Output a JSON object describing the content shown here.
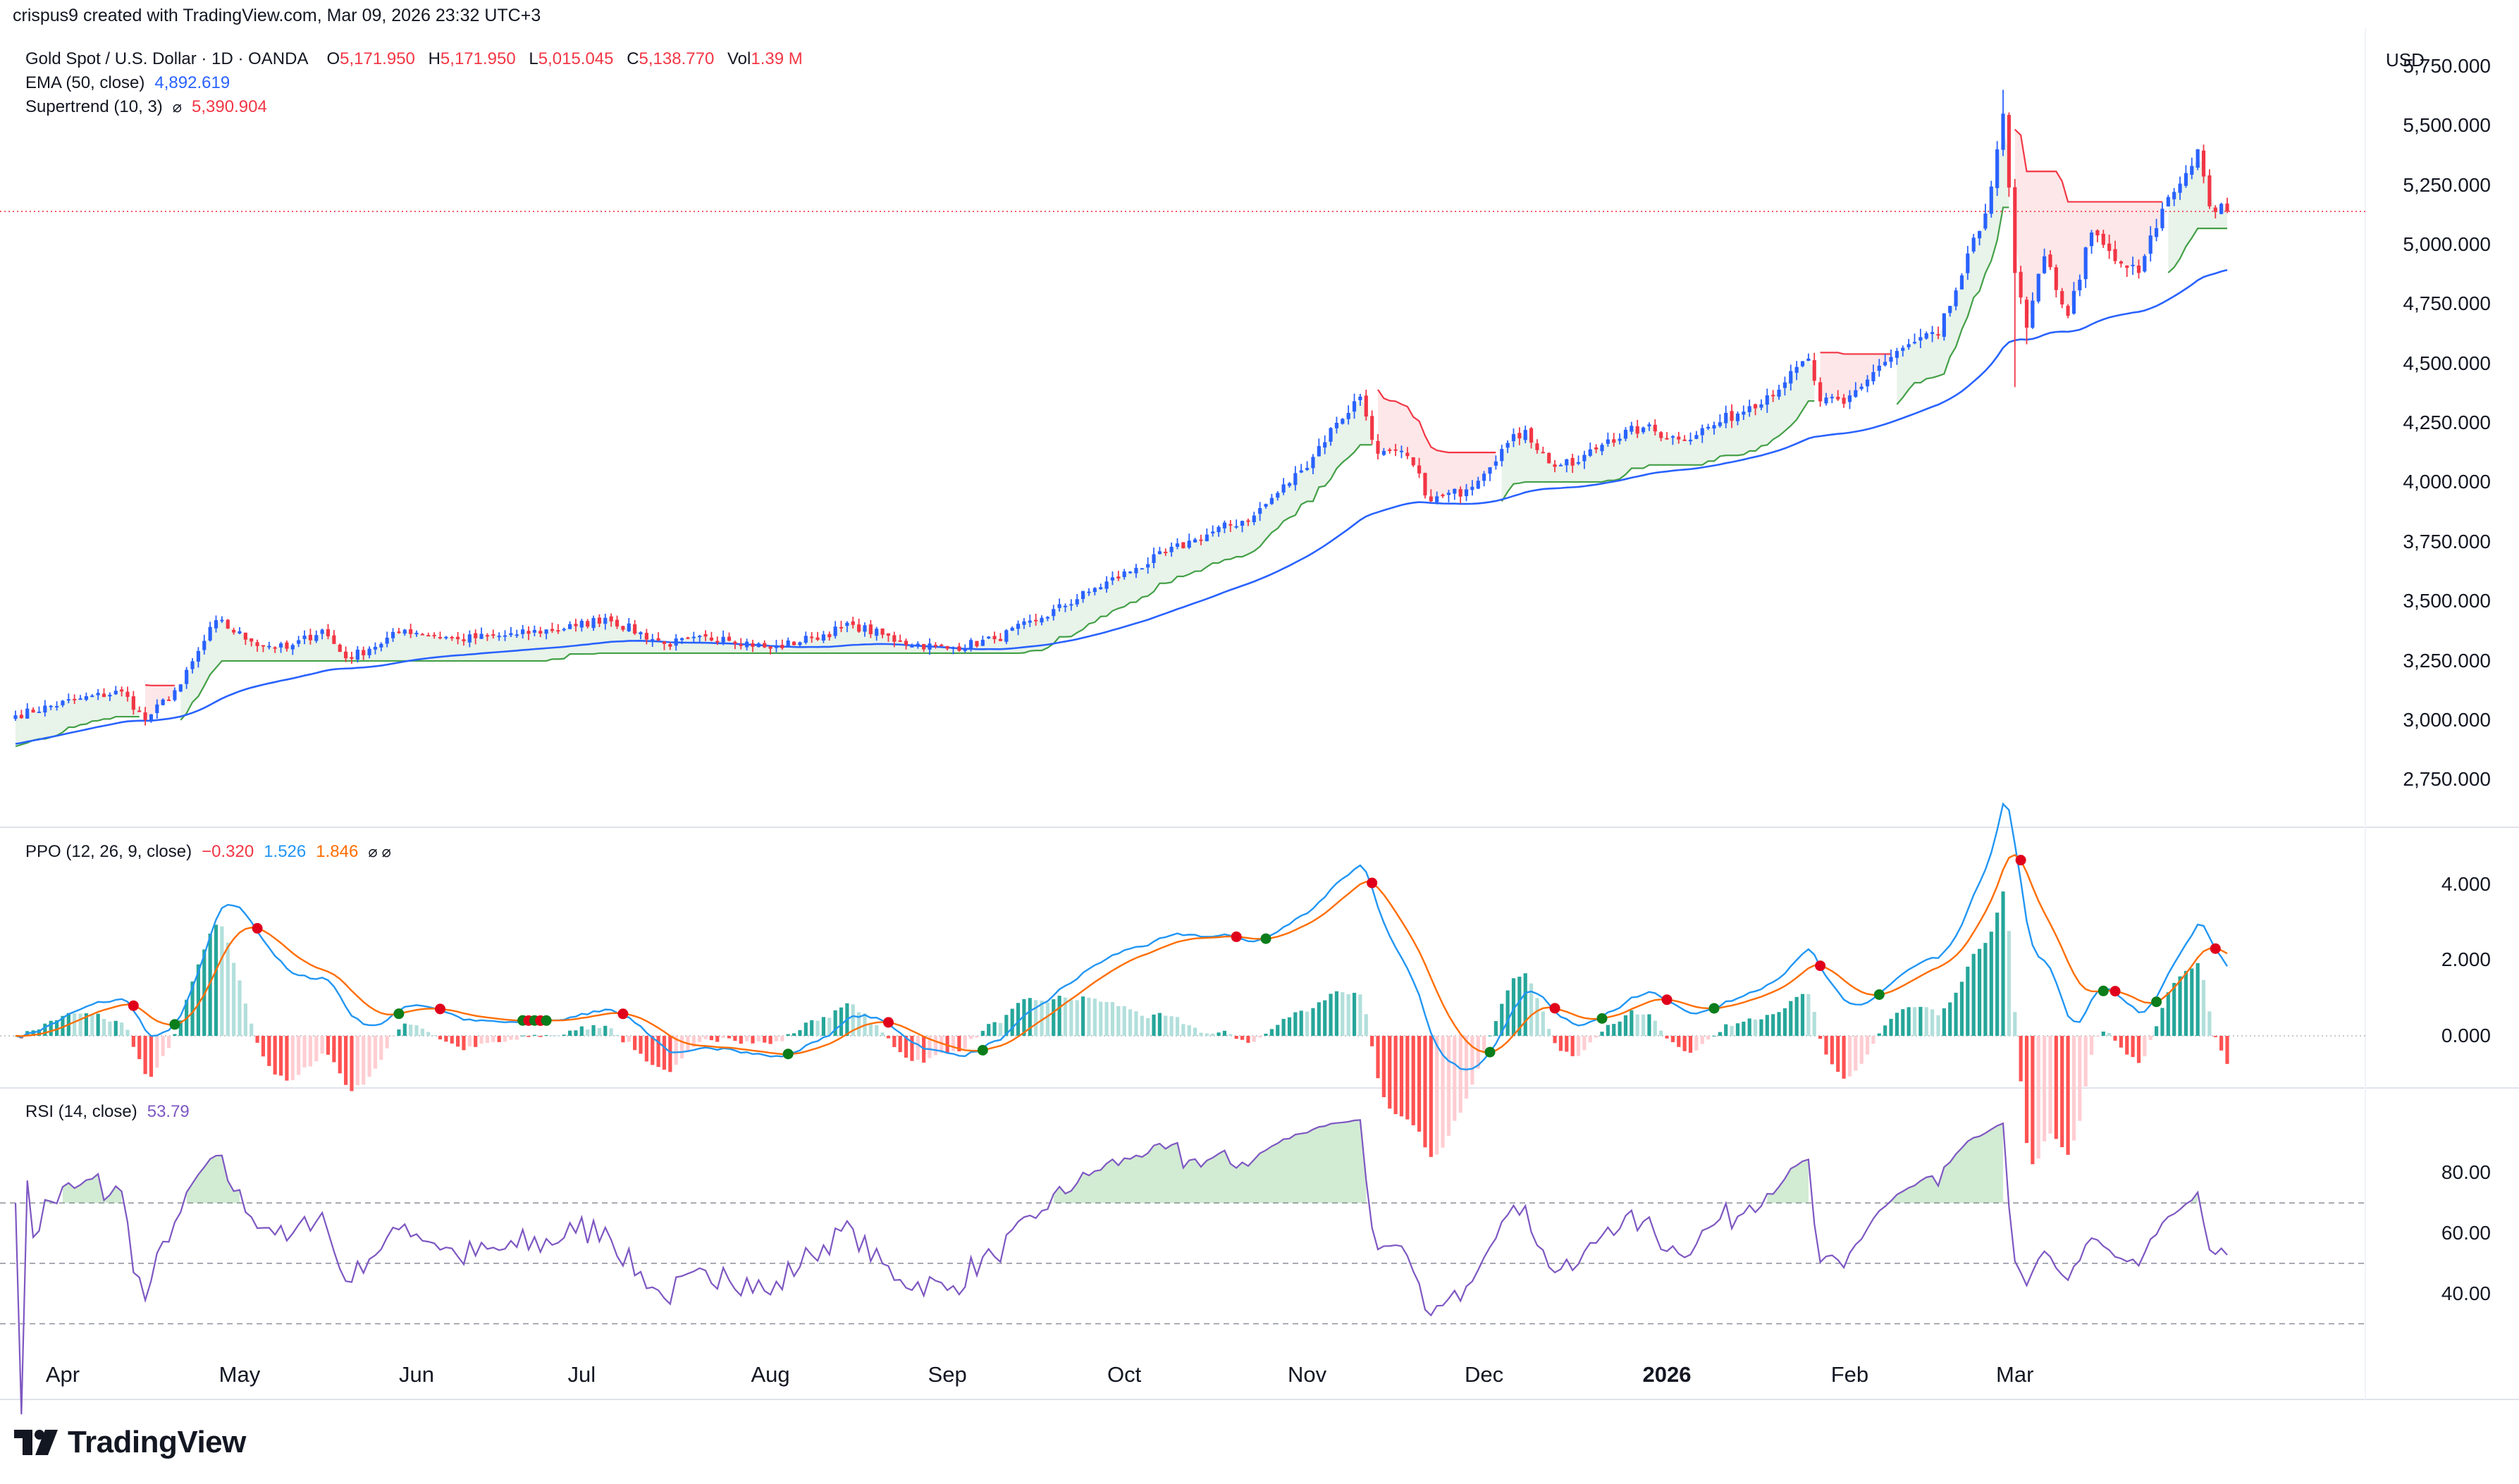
{
  "header": "crispus9 created with TradingView.com, Mar 09, 2026 23:32 UTC+3",
  "symbol": {
    "name": "Gold Spot / U.S. Dollar · 1D · OANDA",
    "open_label": "O",
    "open": "5,171.950",
    "high_label": "H",
    "high": "5,171.950",
    "low_label": "L",
    "low": "5,015.045",
    "close_label": "C",
    "close": "5,138.770",
    "vol_label": "Vol",
    "vol": "1.39 M"
  },
  "ema": {
    "name": "EMA (50, close)",
    "value": "4,892.619"
  },
  "supertrend": {
    "name": "Supertrend (10, 3)",
    "icon": "⌀",
    "value": "5,390.904"
  },
  "ppo": {
    "name": "PPO (12, 26, 9, close)",
    "hist": "−0.320",
    "ppo": "1.526",
    "signal": "1.846",
    "icons": "⌀  ⌀"
  },
  "rsi": {
    "name": "RSI (14, close)",
    "value": "53.79"
  },
  "currency": "USD",
  "price_axis": [
    "5,750.000",
    "5,500.000",
    "5,250.000",
    "5,000.000",
    "4,750.000",
    "4,500.000",
    "4,250.000",
    "4,000.000",
    "3,750.000",
    "3,500.000",
    "3,250.000",
    "3,000.000",
    "2,750.000"
  ],
  "ppo_axis": [
    "4.000",
    "2.000",
    "0.000"
  ],
  "rsi_axis": [
    "80.00",
    "60.00",
    "40.00"
  ],
  "time_axis": [
    "Apr",
    "May",
    "Jun",
    "Jul",
    "Aug",
    "Sep",
    "Oct",
    "Nov",
    "Dec",
    "2026",
    "Feb",
    "Mar"
  ],
  "brand": "TradingView",
  "colors": {
    "up": "#2962ff",
    "down": "#f23645",
    "ema": "#2962ff",
    "st_up": "#43a047",
    "st_down": "#f23645",
    "ppo": "#2196f3",
    "signal": "#ff6d00",
    "rsi": "#7e57c2"
  },
  "chart_data": {
    "type": "candlestick",
    "title": "Gold Spot / U.S. Dollar · 1D · OANDA",
    "ylim": [
      2650,
      5850
    ],
    "last_price": 5138.77,
    "anchors": [
      {
        "day": 0,
        "close": 3020
      },
      {
        "day": 10,
        "close": 3085
      },
      {
        "day": 18,
        "close": 3120
      },
      {
        "day": 22,
        "close": 3000
      },
      {
        "day": 28,
        "close": 3150
      },
      {
        "day": 34,
        "close": 3420
      },
      {
        "day": 40,
        "close": 3330
      },
      {
        "day": 46,
        "close": 3300
      },
      {
        "day": 52,
        "close": 3380
      },
      {
        "day": 56,
        "close": 3260
      },
      {
        "day": 60,
        "close": 3300
      },
      {
        "day": 66,
        "close": 3380
      },
      {
        "day": 75,
        "close": 3340
      },
      {
        "day": 85,
        "close": 3360
      },
      {
        "day": 95,
        "close": 3395
      },
      {
        "day": 100,
        "close": 3430
      },
      {
        "day": 110,
        "close": 3320
      },
      {
        "day": 120,
        "close": 3350
      },
      {
        "day": 128,
        "close": 3300
      },
      {
        "day": 135,
        "close": 3345
      },
      {
        "day": 142,
        "close": 3400
      },
      {
        "day": 150,
        "close": 3330
      },
      {
        "day": 158,
        "close": 3300
      },
      {
        "day": 166,
        "close": 3340
      },
      {
        "day": 174,
        "close": 3430
      },
      {
        "day": 182,
        "close": 3540
      },
      {
        "day": 190,
        "close": 3640
      },
      {
        "day": 200,
        "close": 3760
      },
      {
        "day": 210,
        "close": 3860
      },
      {
        "day": 218,
        "close": 4050
      },
      {
        "day": 224,
        "close": 4250
      },
      {
        "day": 228,
        "close": 4360
      },
      {
        "day": 231,
        "close": 4120
      },
      {
        "day": 236,
        "close": 4110
      },
      {
        "day": 240,
        "close": 3920
      },
      {
        "day": 246,
        "close": 3970
      },
      {
        "day": 252,
        "close": 4140
      },
      {
        "day": 256,
        "close": 4220
      },
      {
        "day": 260,
        "close": 4080
      },
      {
        "day": 264,
        "close": 4070
      },
      {
        "day": 270,
        "close": 4180
      },
      {
        "day": 276,
        "close": 4230
      },
      {
        "day": 282,
        "close": 4180
      },
      {
        "day": 288,
        "close": 4240
      },
      {
        "day": 294,
        "close": 4320
      },
      {
        "day": 300,
        "close": 4420
      },
      {
        "day": 304,
        "close": 4520
      },
      {
        "day": 306,
        "close": 4340
      },
      {
        "day": 310,
        "close": 4330
      },
      {
        "day": 316,
        "close": 4490
      },
      {
        "day": 322,
        "close": 4590
      },
      {
        "day": 326,
        "close": 4620
      },
      {
        "day": 330,
        "close": 4870
      },
      {
        "day": 334,
        "close": 5130
      },
      {
        "day": 337,
        "close": 5550
      },
      {
        "day": 339,
        "close": 4880
      },
      {
        "day": 341,
        "close": 4650
      },
      {
        "day": 344,
        "close": 4950
      },
      {
        "day": 348,
        "close": 4700
      },
      {
        "day": 352,
        "close": 5050
      },
      {
        "day": 356,
        "close": 4930
      },
      {
        "day": 360,
        "close": 4880
      },
      {
        "day": 364,
        "close": 5150
      },
      {
        "day": 368,
        "close": 5300
      },
      {
        "day": 370,
        "close": 5400
      },
      {
        "day": 372,
        "close": 5160
      },
      {
        "day": 375,
        "close": 5139
      }
    ],
    "ema50_end": 4892.619,
    "ppo_end": 1.526,
    "signal_end": 1.846,
    "hist_end": -0.32,
    "rsi_end": 53.79,
    "rsi_levels": [
      70,
      50,
      30
    ]
  }
}
